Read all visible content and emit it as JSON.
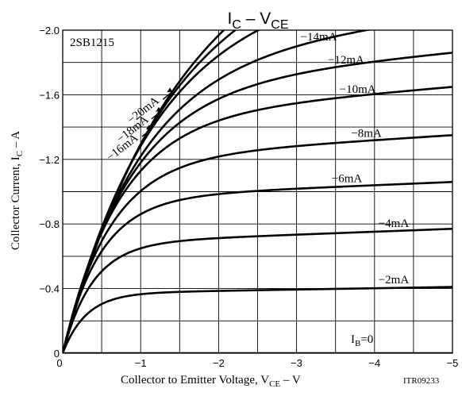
{
  "chart_data": {
    "type": "line",
    "title_main": "I",
    "title_main_sub": "C",
    "title_sep": " – V",
    "title_sep_sub": "CE",
    "part_number": "2SB1215",
    "xlabel_prefix": "Collector to Emitter Voltage, V",
    "xlabel_sub": "CE",
    "xlabel_unit": " – V",
    "ylabel_prefix": "Collector Current, I",
    "ylabel_sub": "C",
    "ylabel_unit": " – A",
    "document_code": "ITR09233",
    "xlim": [
      0,
      -5
    ],
    "ylim": [
      0,
      -2.0
    ],
    "x_ticks": [
      "0",
      "−1",
      "−2",
      "−3",
      "−4",
      "−5"
    ],
    "y_ticks": [
      "0",
      "−0.4",
      "−0.8",
      "−1.2",
      "−1.6",
      "−2.0"
    ],
    "grid": true,
    "series": [
      {
        "name": "IB=0",
        "label_main": "I",
        "label_sub": "B",
        "label_rest": "=0",
        "sat": 0.0,
        "knee": 0.3,
        "slope": 0.0
      },
      {
        "name": "−2mA",
        "label": "−2mA",
        "sat": -0.37,
        "knee": 0.3,
        "slope": -0.008
      },
      {
        "name": "−4mA",
        "label": "−4mA",
        "sat": -0.68,
        "knee": 0.38,
        "slope": -0.018
      },
      {
        "name": "−6mA",
        "label": "−6mA",
        "sat": -0.96,
        "knee": 0.48,
        "slope": -0.02
      },
      {
        "name": "−8mA",
        "label": "−8mA",
        "sat": -1.2,
        "knee": 0.6,
        "slope": -0.03
      },
      {
        "name": "−10mA",
        "label": "−10mA",
        "sat": -1.45,
        "knee": 0.72,
        "slope": -0.04
      },
      {
        "name": "−12mA",
        "label": "−12mA",
        "sat": -1.64,
        "knee": 0.85,
        "slope": -0.045
      },
      {
        "name": "−14mA",
        "label": "−14mA",
        "sat": -1.82,
        "knee": 0.98,
        "slope": -0.055
      },
      {
        "name": "−16mA",
        "label": "−16mA",
        "sat": -2.07,
        "knee": 1.12,
        "slope": -0.06
      },
      {
        "name": "−18mA",
        "label": "−18mA",
        "sat": -2.25,
        "knee": 1.27,
        "slope": -0.065
      },
      {
        "name": "−20mA",
        "label": "−20mA",
        "sat": -2.42,
        "knee": 1.42,
        "slope": -0.07
      }
    ]
  }
}
